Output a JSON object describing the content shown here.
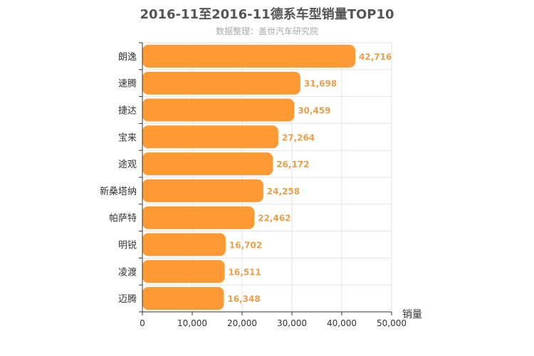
{
  "title": "2016-11至2016-11德系车型销量TOP10",
  "subtitle": "数据整理：盖世汽车研究院",
  "chart_data": {
    "type": "bar",
    "orientation": "horizontal",
    "title": "2016-11至2016-11德系车型销量TOP10",
    "subtitle": "数据整理：盖世汽车研究院",
    "xlabel": "销量",
    "ylabel": "",
    "categories": [
      "朗逸",
      "速腾",
      "捷达",
      "宝来",
      "途观",
      "新桑塔纳",
      "帕萨特",
      "明锐",
      "凌渡",
      "迈腾"
    ],
    "values": [
      42716,
      31698,
      30459,
      27264,
      26172,
      24258,
      22462,
      16702,
      16511,
      16348
    ],
    "value_labels": [
      "42,716",
      "31,698",
      "30,459",
      "27,264",
      "26,172",
      "24,258",
      "22,462",
      "16,702",
      "16,511",
      "16,348"
    ],
    "xlim": [
      0,
      50000
    ],
    "xticks": [
      0,
      10000,
      20000,
      30000,
      40000,
      50000
    ],
    "xtick_labels": [
      "0",
      "10,000",
      "20,000",
      "30,000",
      "40,000",
      "50,000"
    ],
    "grid": true,
    "bar_color": "#ff9933",
    "label_color": "#e8a04a"
  }
}
